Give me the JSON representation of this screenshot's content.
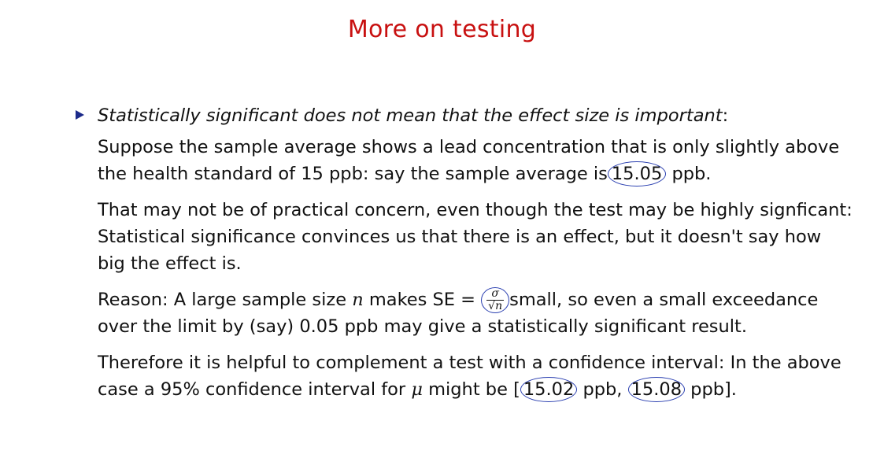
{
  "slide": {
    "title": "More on testing",
    "headline": {
      "text": "Statistically significant does not mean that the effect size is important",
      "suffix": ":"
    },
    "p1": {
      "line1": "Suppose the sample average shows a lead concentration that is only slightly above",
      "line2_pre": "the health standard of 15 ppb: say the sample average is",
      "value": "15.05",
      "line2_post": "ppb."
    },
    "p2": {
      "text": "That may not be of practical concern, even though the test may be highly signficant: Statistical significance convinces us that there is an effect, but it doesn't say how big the effect is."
    },
    "p3": {
      "pre": "Reason: A large sample size",
      "var_n": "n",
      "mid": "makes SE =",
      "frac_num": "σ",
      "frac_den": "√n",
      "post": "small, so even a small exceedance over the limit by (say) 0.05 ppb may give a statistically significant result."
    },
    "p4": {
      "pre": "Therefore it is helpful to complement a test with a confidence interval: In the above case a 95% confidence interval for",
      "var_mu": "μ",
      "mid": "might be [",
      "low": "15.02",
      "sep": "ppb,",
      "high": "15.08",
      "post": "ppb]."
    }
  },
  "annotations": {
    "ink_color": "#2a3fb0",
    "title_color": "#c81010",
    "bullet_color": "#1b2a8a"
  }
}
